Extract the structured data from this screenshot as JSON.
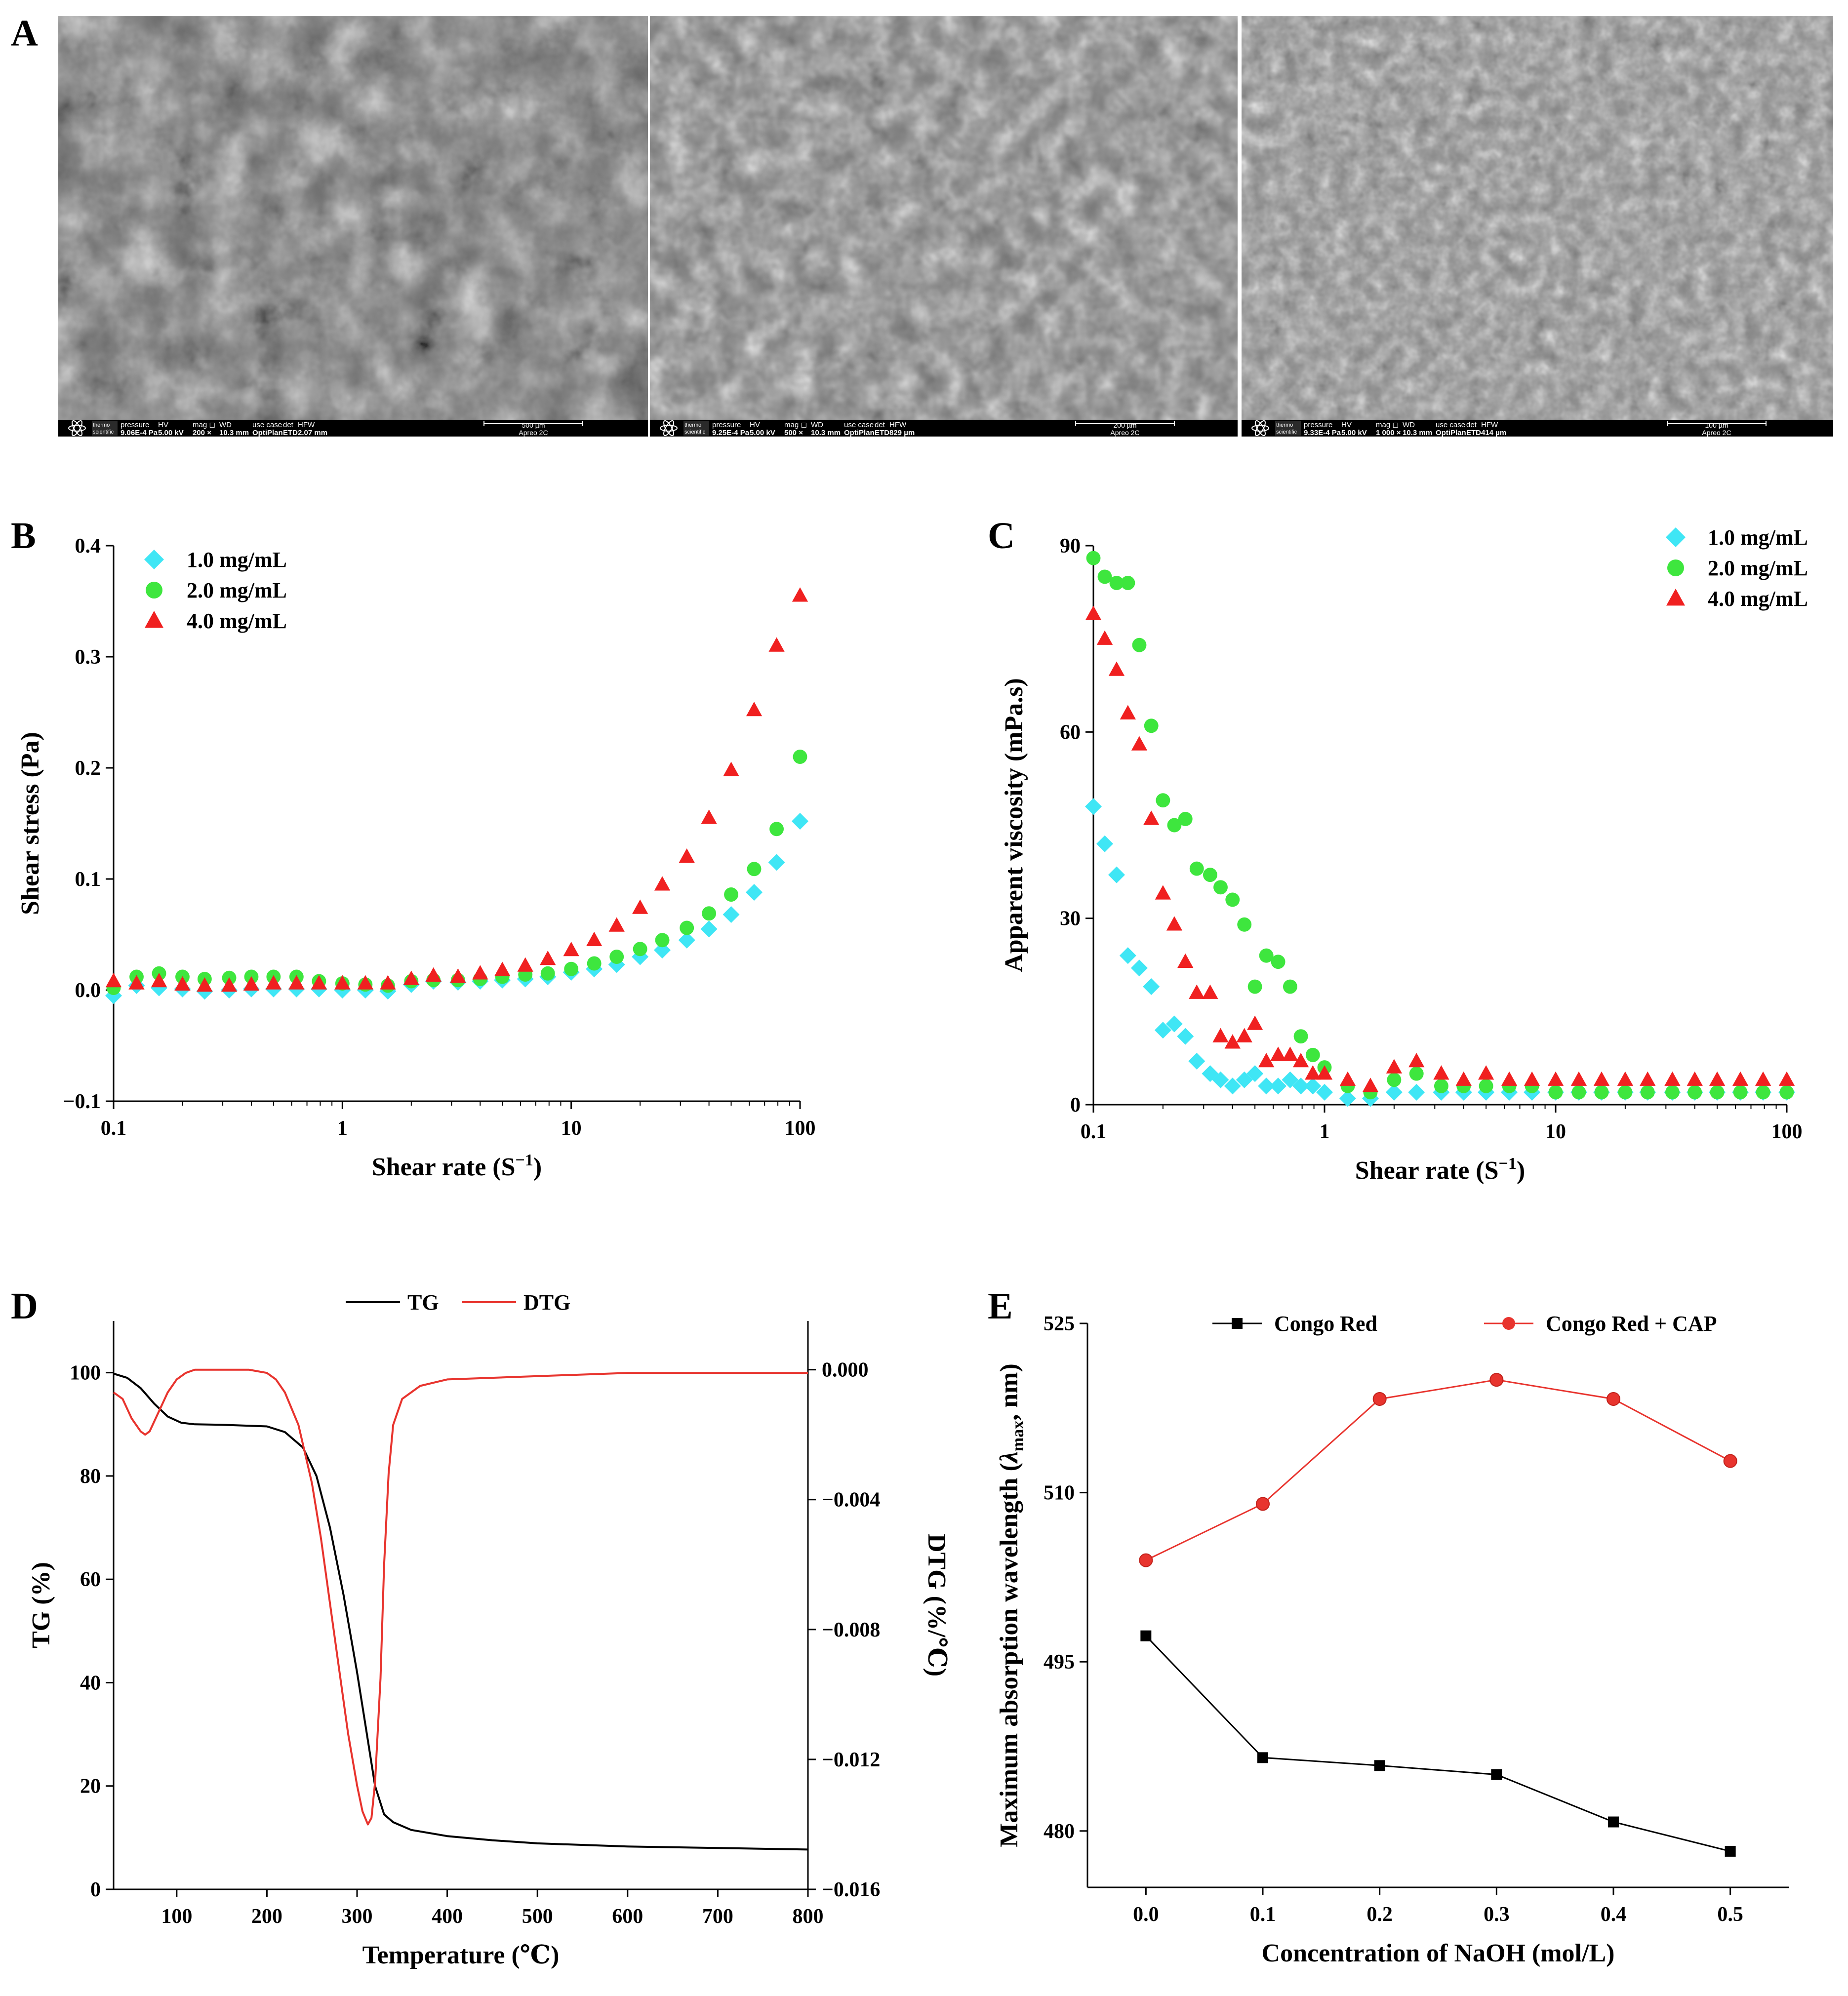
{
  "panels": {
    "A": "A",
    "B": "B",
    "C": "C",
    "D": "D",
    "E": "E"
  },
  "sem_images": [
    {
      "brand_top": "thermo",
      "brand_bottom": "scientific",
      "h_pressure": "pressure",
      "h_hv": "HV",
      "h_mag": "mag ◻",
      "h_wd": "WD",
      "h_usecase": "use case",
      "h_det": "det",
      "h_hfw": "HFW",
      "pressure": "9.06E-4 Pa",
      "hv": "5.00 kV",
      "mag": "200 ×",
      "wd": "10.3 mm",
      "usecase": "OptiPlan",
      "det": "ETD",
      "hfw": "2.07 mm",
      "scale": "500 µm",
      "instrument": "Apreo 2C"
    },
    {
      "brand_top": "thermo",
      "brand_bottom": "scientific",
      "h_pressure": "pressure",
      "h_hv": "HV",
      "h_mag": "mag ◻",
      "h_wd": "WD",
      "h_usecase": "use case",
      "h_det": "det",
      "h_hfw": "HFW",
      "pressure": "9.25E-4 Pa",
      "hv": "5.00 kV",
      "mag": "500 ×",
      "wd": "10.3 mm",
      "usecase": "OptiPlan",
      "det": "ETD",
      "hfw": "829 µm",
      "scale": "200 µm",
      "instrument": "Apreo 2C"
    },
    {
      "brand_top": "thermo",
      "brand_bottom": "scientific",
      "h_pressure": "pressure",
      "h_hv": "HV",
      "h_mag": "mag ◻",
      "h_wd": "WD",
      "h_usecase": "use case",
      "h_det": "det",
      "h_hfw": "HFW",
      "pressure": "9.33E-4 Pa",
      "hv": "5.00 kV",
      "mag": "1 000 ×",
      "wd": "10.3 mm",
      "usecase": "OptiPlan",
      "det": "ETD",
      "hfw": "414 µm",
      "scale": "100 µm",
      "instrument": "Apreo 2C"
    }
  ],
  "colors": {
    "cyan": "#3fe6f5",
    "green": "#3ee63e",
    "red": "#f02020",
    "black": "#000000",
    "dtg_red": "#e8342e",
    "e_red": "#e8342e"
  },
  "chart_data": [
    {
      "panel": "B",
      "type": "scatter",
      "xscale": "log",
      "xlim": [
        0.1,
        100
      ],
      "ylim": [
        -0.1,
        0.4
      ],
      "xticks": [
        "0.1",
        "1",
        "10",
        "100"
      ],
      "yticks": [
        "−0.1",
        "0.0",
        "0.1",
        "0.2",
        "0.3",
        "0.4"
      ],
      "xlabel": "Shear rate (S",
      "xlabel_sup": "−1",
      "xlabel_end": ")",
      "ylabel": "Shear stress (Pa)",
      "legend": "top-left",
      "series": [
        {
          "name": "1.0 mg/mL",
          "marker": "diamond",
          "color": "#3fe6f5",
          "x": [
            0.1,
            0.126,
            0.158,
            0.2,
            0.25,
            0.32,
            0.4,
            0.5,
            0.63,
            0.79,
            1.0,
            1.26,
            1.58,
            2.0,
            2.5,
            3.2,
            4.0,
            5.0,
            6.3,
            7.9,
            10,
            12.6,
            15.8,
            20,
            25,
            32,
            40,
            50,
            63,
            79,
            100
          ],
          "values": [
            -0.005,
            0.004,
            0.002,
            0.001,
            -0.001,
            0.0,
            0.001,
            0.001,
            0.001,
            0.001,
            0.0,
            0.0,
            -0.001,
            0.005,
            0.008,
            0.007,
            0.008,
            0.009,
            0.01,
            0.012,
            0.016,
            0.019,
            0.023,
            0.03,
            0.036,
            0.045,
            0.055,
            0.068,
            0.088,
            0.115,
            0.152
          ]
        },
        {
          "name": "2.0 mg/mL",
          "marker": "circle",
          "color": "#3ee63e",
          "x": [
            0.1,
            0.126,
            0.158,
            0.2,
            0.25,
            0.32,
            0.4,
            0.5,
            0.63,
            0.79,
            1.0,
            1.26,
            1.58,
            2.0,
            2.5,
            3.2,
            4.0,
            5.0,
            6.3,
            7.9,
            10,
            12.6,
            15.8,
            20,
            25,
            32,
            40,
            50,
            63,
            79,
            100
          ],
          "values": [
            0.002,
            0.012,
            0.015,
            0.012,
            0.01,
            0.011,
            0.012,
            0.012,
            0.012,
            0.008,
            0.006,
            0.005,
            0.004,
            0.008,
            0.009,
            0.009,
            0.01,
            0.012,
            0.014,
            0.015,
            0.019,
            0.024,
            0.03,
            0.037,
            0.045,
            0.056,
            0.069,
            0.086,
            0.109,
            0.145,
            0.21
          ]
        },
        {
          "name": "4.0 mg/mL",
          "marker": "triangle",
          "color": "#f02020",
          "x": [
            0.1,
            0.126,
            0.158,
            0.2,
            0.25,
            0.32,
            0.4,
            0.5,
            0.63,
            0.79,
            1.0,
            1.26,
            1.58,
            2.0,
            2.5,
            3.2,
            4.0,
            5.0,
            6.3,
            7.9,
            10,
            12.6,
            15.8,
            20,
            25,
            32,
            40,
            50,
            63,
            79,
            100
          ],
          "values": [
            0.008,
            0.006,
            0.008,
            0.005,
            0.004,
            0.004,
            0.005,
            0.006,
            0.006,
            0.006,
            0.006,
            0.006,
            0.006,
            0.01,
            0.013,
            0.012,
            0.015,
            0.018,
            0.022,
            0.028,
            0.036,
            0.045,
            0.058,
            0.074,
            0.095,
            0.12,
            0.155,
            0.198,
            0.252,
            0.31,
            0.355
          ]
        }
      ]
    },
    {
      "panel": "C",
      "type": "scatter",
      "xscale": "log",
      "xlim": [
        0.1,
        100
      ],
      "ylim": [
        0,
        90
      ],
      "xticks": [
        "0.1",
        "1",
        "10",
        "100"
      ],
      "yticks": [
        "0",
        "30",
        "60",
        "90"
      ],
      "xlabel": "Shear rate (S",
      "xlabel_sup": "−1",
      "xlabel_end": ")",
      "ylabel": "Apparent viscosity (mPa.s)",
      "legend": "top-right",
      "series": [
        {
          "name": "1.0 mg/mL",
          "marker": "diamond",
          "color": "#3fe6f5",
          "x": [
            0.1,
            0.112,
            0.126,
            0.141,
            0.158,
            0.178,
            0.2,
            0.224,
            0.25,
            0.28,
            0.32,
            0.355,
            0.4,
            0.45,
            0.5,
            0.56,
            0.63,
            0.71,
            0.79,
            0.89,
            1.0,
            1.26,
            1.58,
            2.0,
            2.5,
            3.2,
            4.0,
            5.0,
            6.3,
            7.9,
            10,
            12.6,
            15.8,
            20,
            25,
            32,
            40,
            50,
            63,
            79,
            100
          ],
          "values": [
            48,
            42,
            37,
            24,
            22,
            19,
            12,
            13,
            11,
            7,
            5,
            4,
            3,
            4,
            5,
            3,
            3,
            4,
            3,
            3,
            2,
            1,
            1,
            2,
            2,
            2,
            2,
            2,
            2,
            2,
            2,
            2,
            2,
            2,
            2,
            2,
            2,
            2,
            2,
            2,
            2
          ]
        },
        {
          "name": "2.0 mg/mL",
          "marker": "circle",
          "color": "#3ee63e",
          "x": [
            0.1,
            0.112,
            0.126,
            0.141,
            0.158,
            0.178,
            0.2,
            0.224,
            0.25,
            0.28,
            0.32,
            0.355,
            0.4,
            0.45,
            0.5,
            0.56,
            0.63,
            0.71,
            0.79,
            0.89,
            1.0,
            1.26,
            1.58,
            2.0,
            2.5,
            3.2,
            4.0,
            5.0,
            6.3,
            7.9,
            10,
            12.6,
            15.8,
            20,
            25,
            32,
            40,
            50,
            63,
            79,
            100
          ],
          "values": [
            88,
            85,
            84,
            84,
            74,
            61,
            49,
            45,
            46,
            38,
            37,
            35,
            33,
            29,
            19,
            24,
            23,
            19,
            11,
            8,
            6,
            3,
            2,
            4,
            5,
            3,
            3,
            3,
            3,
            3,
            2,
            2,
            2,
            2,
            2,
            2,
            2,
            2,
            2,
            2,
            2
          ]
        },
        {
          "name": "4.0 mg/mL",
          "marker": "triangle",
          "color": "#f02020",
          "x": [
            0.1,
            0.112,
            0.126,
            0.141,
            0.158,
            0.178,
            0.2,
            0.224,
            0.25,
            0.28,
            0.32,
            0.355,
            0.4,
            0.45,
            0.5,
            0.56,
            0.63,
            0.71,
            0.79,
            0.89,
            1.0,
            1.26,
            1.58,
            2.0,
            2.5,
            3.2,
            4.0,
            5.0,
            6.3,
            7.9,
            10,
            12.6,
            15.8,
            20,
            25,
            32,
            40,
            50,
            63,
            79,
            100
          ],
          "values": [
            79,
            75,
            70,
            63,
            58,
            46,
            34,
            29,
            23,
            18,
            18,
            11,
            10,
            11,
            13,
            7,
            8,
            8,
            7,
            5,
            5,
            4,
            3,
            6,
            7,
            5,
            4,
            5,
            4,
            4,
            4,
            4,
            4,
            4,
            4,
            4,
            4,
            4,
            4,
            4,
            4
          ]
        }
      ]
    },
    {
      "panel": "D",
      "type": "line",
      "xlim": [
        30,
        800
      ],
      "ylim": [
        0,
        110
      ],
      "y2lim": [
        -0.016,
        0.0015
      ],
      "xticks": [
        "100",
        "200",
        "300",
        "400",
        "500",
        "600",
        "700",
        "800"
      ],
      "yticks": [
        "0",
        "20",
        "40",
        "60",
        "80",
        "100"
      ],
      "y2ticks": [
        "−0.016",
        "−0.012",
        "−0.008",
        "−0.004",
        "0.000"
      ],
      "xlabel": "Temperature (℃)",
      "ylabel": "TG (%)",
      "y2label": "DTG (%/℃)",
      "legend": "top-center",
      "series": [
        {
          "name": "TG",
          "axis": "left",
          "color": "#000000",
          "x": [
            30,
            45,
            60,
            75,
            90,
            105,
            120,
            150,
            200,
            220,
            240,
            255,
            270,
            285,
            300,
            310,
            320,
            330,
            340,
            360,
            400,
            450,
            500,
            600,
            700,
            800
          ],
          "values": [
            99.8,
            99,
            97,
            94,
            91.5,
            90.3,
            90,
            89.9,
            89.6,
            88.5,
            85.5,
            80,
            70,
            57,
            42,
            31,
            20,
            14.5,
            13,
            11.5,
            10.3,
            9.5,
            8.9,
            8.3,
            8.0,
            7.7
          ]
        },
        {
          "name": "DTG",
          "axis": "right",
          "color": "#e8342e",
          "x": [
            30,
            40,
            50,
            60,
            65,
            70,
            80,
            90,
            100,
            110,
            120,
            140,
            180,
            200,
            210,
            220,
            235,
            250,
            260,
            270,
            280,
            290,
            300,
            306,
            312,
            316,
            320,
            326,
            330,
            335,
            340,
            350,
            370,
            400,
            500,
            600,
            700,
            800
          ],
          "values": [
            -0.0007,
            -0.0009,
            -0.0015,
            -0.0019,
            -0.002,
            -0.0019,
            -0.0013,
            -0.0007,
            -0.0003,
            -0.0001,
            0.0,
            0.0,
            0.0,
            -0.0001,
            -0.0003,
            -0.0007,
            -0.0017,
            -0.0035,
            -0.0052,
            -0.0072,
            -0.0092,
            -0.0112,
            -0.0128,
            -0.0136,
            -0.014,
            -0.0138,
            -0.0127,
            -0.0095,
            -0.006,
            -0.0032,
            -0.0017,
            -0.0009,
            -0.0005,
            -0.0003,
            -0.0002,
            -0.0001,
            -0.0001,
            -0.0001
          ]
        }
      ]
    },
    {
      "panel": "E",
      "type": "line",
      "xlim": [
        -0.05,
        0.55
      ],
      "ylim": [
        475,
        525
      ],
      "xticks": [
        "0.0",
        "0.1",
        "0.2",
        "0.3",
        "0.4",
        "0.5"
      ],
      "yticks": [
        "480",
        "495",
        "510",
        "525"
      ],
      "xlabel": "Concentration of NaOH (mol/L)",
      "ylabel_parts": [
        "Maximum absorption wavelength (",
        "λ",
        "max",
        ", nm)"
      ],
      "legend": "top-center",
      "series": [
        {
          "name": "Congo Red",
          "marker": "square",
          "color": "#000000",
          "x": [
            0.0,
            0.1,
            0.2,
            0.3,
            0.4,
            0.5
          ],
          "values": [
            497.3,
            486.5,
            485.8,
            485.0,
            480.8,
            478.2
          ]
        },
        {
          "name": "Congo Red + CAP",
          "marker": "circle",
          "color": "#e8342e",
          "x": [
            0.0,
            0.1,
            0.2,
            0.3,
            0.4,
            0.5
          ],
          "values": [
            504.0,
            509.0,
            518.3,
            520.0,
            518.3,
            512.8
          ]
        }
      ]
    }
  ]
}
